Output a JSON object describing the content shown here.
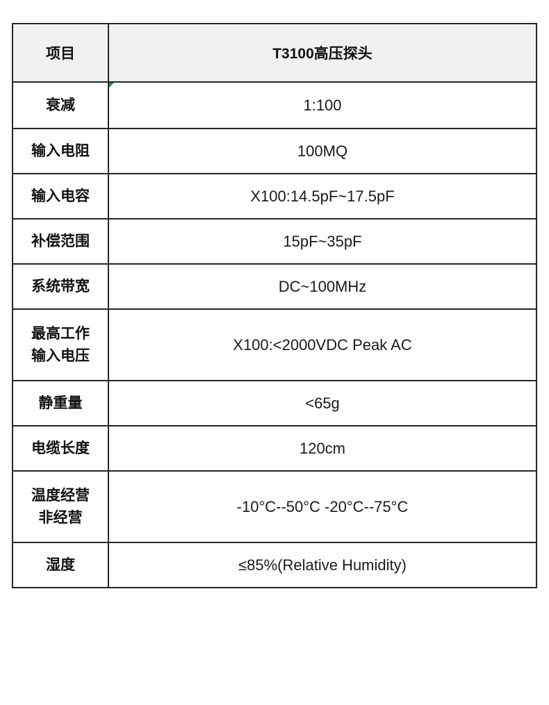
{
  "table": {
    "header": {
      "item_col": "项目",
      "product_col": "T3100高压探头"
    },
    "rows": [
      {
        "label": "衰减",
        "value": "1:100"
      },
      {
        "label": "输入电阻",
        "value": "100MQ"
      },
      {
        "label": "输入电容",
        "value": "X100:14.5pF~17.5pF"
      },
      {
        "label": "补偿范围",
        "value": "15pF~35pF"
      },
      {
        "label": "系统带宽",
        "value": "DC~100MHz"
      },
      {
        "label": "最高工作\n输入电压",
        "value": "X100:<2000VDC Peak AC"
      },
      {
        "label": "静重量",
        "value": "<65g"
      },
      {
        "label": "电缆长度",
        "value": "120cm"
      },
      {
        "label": "温度经营\n非经营",
        "value": "-10°C--50°C -20°C--75°C"
      },
      {
        "label": "湿度",
        "value": "≤85%(Relative Humidity)"
      }
    ],
    "colors": {
      "header_background": "#f1f1f1",
      "border": "#262626",
      "label_text": "#111111",
      "value_text": "#1a1a1a",
      "comment_marker_green": "#1f8a3b",
      "page_background": "#ffffff"
    }
  }
}
